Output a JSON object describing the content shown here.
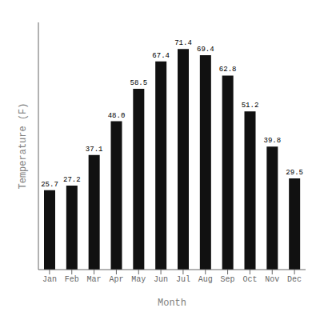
{
  "chart_data": {
    "type": "bar",
    "categories": [
      "Jan",
      "Feb",
      "Mar",
      "Apr",
      "May",
      "Jun",
      "Jul",
      "Aug",
      "Sep",
      "Oct",
      "Nov",
      "Dec"
    ],
    "values": [
      25.7,
      27.2,
      37.1,
      48.0,
      58.5,
      67.4,
      71.4,
      69.4,
      62.8,
      51.2,
      39.8,
      29.5
    ],
    "value_labels": [
      "25.7",
      "27.2",
      "37.1",
      "48.0",
      "58.5",
      "67.4",
      "71.4",
      "69.4",
      "62.8",
      "51.2",
      "39.8",
      "29.5"
    ],
    "data_labels": true,
    "color": "#111111",
    "xlabel": "Month",
    "ylabel": "Temperature (F)",
    "ylim": [
      0,
      80
    ],
    "yticks": [],
    "tick_labels": "x",
    "grid": false
  }
}
